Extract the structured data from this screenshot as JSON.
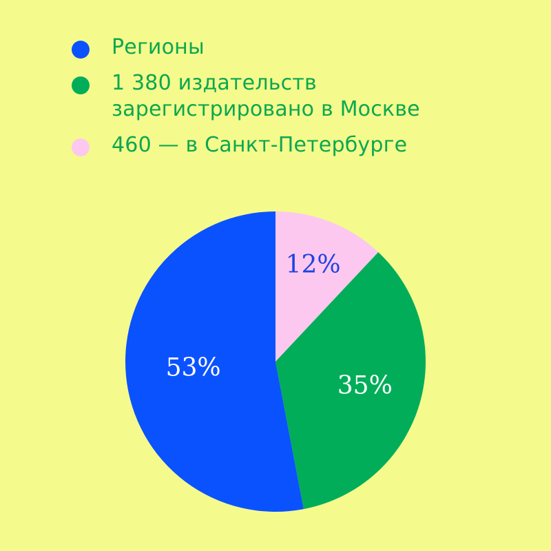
{
  "chart_data": {
    "type": "pie",
    "slices": [
      {
        "legend": "Регионы",
        "value": 53,
        "label": "53%",
        "color": "#0b52ff",
        "label_color": "#ffffff"
      },
      {
        "legend": "1 380 издательств зарегистрировано в Москве",
        "value": 35,
        "label": "35%",
        "color": "#02ad5a",
        "label_color": "#ffffff"
      },
      {
        "legend": "460 — в Санкт-Петербурге",
        "value": 12,
        "label": "12%",
        "color": "#fcc8f0",
        "label_color": "#1f42e0"
      }
    ],
    "legend_position": "top-left"
  },
  "colors": {
    "background": "#f5fa8c",
    "legend_text": "#0aa84f"
  }
}
